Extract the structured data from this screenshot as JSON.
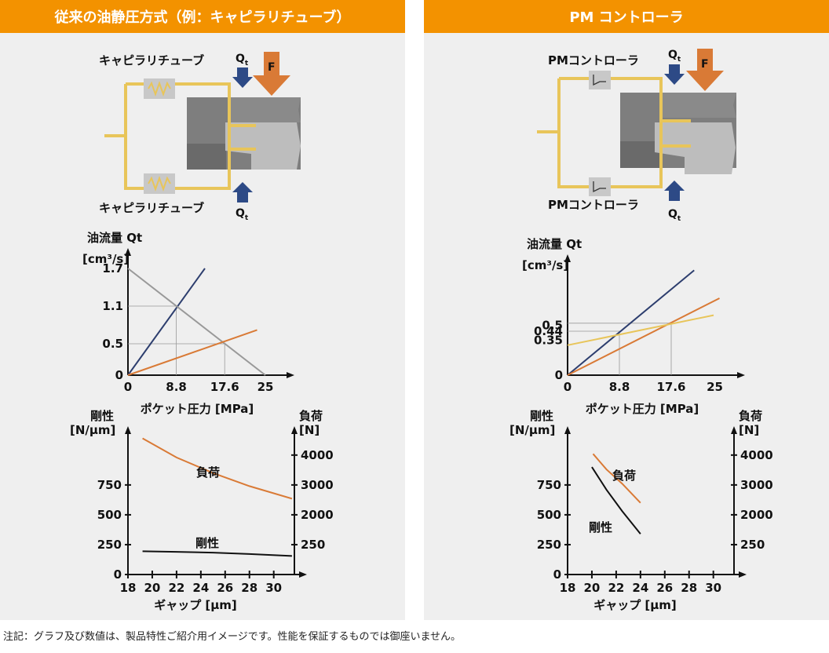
{
  "left_panel": {
    "header": "従来の油静圧方式（例：キャピラリチューブ）",
    "diagram": {
      "restrictor_top_label": "キャピラリチューブ",
      "restrictor_bottom_label": "キャピラリチューブ",
      "flow_symbol": "Q",
      "flow_subscript": "t",
      "force_label": "F"
    }
  },
  "right_panel": {
    "header": "PM コントローラ",
    "diagram": {
      "restrictor_top_label": "PMコントローラ",
      "restrictor_bottom_label": "PMコントローラ",
      "flow_symbol": "Q",
      "flow_subscript": "t",
      "force_label": "F"
    }
  },
  "chart_data": [
    {
      "id": "flow-capillary",
      "type": "line",
      "ylabel_line1": "油流量 Qt",
      "ylabel_line2": "[cm³/s]",
      "xlabel": "ポケット圧力 [MPa]",
      "x_ticks": [
        "0",
        "8.8",
        "17.6",
        "25"
      ],
      "x_tick_values": [
        0,
        8.8,
        17.6,
        25
      ],
      "y_ticks": [
        "0",
        "0.5",
        "1.1",
        "1.7"
      ],
      "y_tick_values": [
        0,
        0.5,
        1.1,
        1.7
      ],
      "xlim": [
        0,
        28
      ],
      "ylim": [
        0,
        1.85
      ],
      "series": [
        {
          "color": "#2d3e6e",
          "points": [
            [
              0,
              0
            ],
            [
              14,
              1.7
            ]
          ]
        },
        {
          "color": "#999999",
          "points": [
            [
              0,
              1.7
            ],
            [
              25,
              0
            ]
          ]
        },
        {
          "color": "#d97a36",
          "points": [
            [
              0,
              0
            ],
            [
              23.5,
              0.72
            ]
          ]
        }
      ],
      "guides": [
        [
          8.8,
          1.1
        ],
        [
          17.6,
          0.5
        ]
      ]
    },
    {
      "id": "flow-pm",
      "type": "line",
      "ylabel_line1": "油流量 Qt",
      "ylabel_line2": "[cm³/s]",
      "xlabel": "ポケット圧力 [MPa]",
      "x_ticks": [
        "0",
        "8.8",
        "17.6",
        "25"
      ],
      "x_tick_values": [
        0,
        8.8,
        17.6,
        25
      ],
      "y_ticks": [
        "0",
        "0.35",
        "0.44",
        "0.5"
      ],
      "y_tick_values": [
        0,
        0.35,
        0.44,
        0.5
      ],
      "xlim": [
        0,
        28
      ],
      "ylim": [
        0,
        1.1
      ],
      "series": [
        {
          "color": "#2d3e6e",
          "points": [
            [
              0,
              0
            ],
            [
              21.5,
              1.05
            ]
          ]
        },
        {
          "color": "#d97a36",
          "points": [
            [
              0,
              0
            ],
            [
              25.8,
              0.77
            ]
          ]
        },
        {
          "color": "#e8c55a",
          "points": [
            [
              0,
              0.3
            ],
            [
              24.8,
              0.6
            ]
          ]
        }
      ],
      "guides": [
        [
          8.8,
          0.44
        ],
        [
          17.6,
          0.52
        ]
      ]
    },
    {
      "id": "load-capillary",
      "type": "line",
      "ylabel_left_line1": "剛性",
      "ylabel_left_line2": "[N/μm]",
      "ylabel_right_line1": "負荷",
      "ylabel_right_line2": "[N]",
      "xlabel": "ギャップ [μm]",
      "x_ticks": [
        "18",
        "20",
        "22",
        "24",
        "26",
        "28",
        "30"
      ],
      "x_tick_values": [
        18,
        20,
        22,
        24,
        26,
        28,
        30
      ],
      "y_left_ticks": [
        "0",
        "250",
        "500",
        "750"
      ],
      "y_left_tick_values": [
        0,
        250,
        500,
        750
      ],
      "y_right_ticks": [
        "250",
        "2000",
        "3000",
        "4000"
      ],
      "y_right_tick_positions": [
        250,
        500,
        750,
        1000
      ],
      "xlim": [
        18,
        31.7
      ],
      "ylim": [
        0,
        1150
      ],
      "series": [
        {
          "name": "負荷",
          "color": "#d97a36",
          "points": [
            [
              19.2,
              1140
            ],
            [
              22,
              980
            ],
            [
              25,
              850
            ],
            [
              28,
              740
            ],
            [
              31.5,
              635
            ]
          ]
        },
        {
          "name": "剛性",
          "color": "#111111",
          "points": [
            [
              19.2,
              195
            ],
            [
              22,
              190
            ],
            [
              25,
              183
            ],
            [
              28,
              172
            ],
            [
              31.5,
              155
            ]
          ]
        }
      ]
    },
    {
      "id": "load-pm",
      "type": "line",
      "ylabel_left_line1": "剛性",
      "ylabel_left_line2": "[N/μm]",
      "ylabel_right_line1": "負荷",
      "ylabel_right_line2": "[N]",
      "xlabel": "ギャップ [μm]",
      "x_ticks": [
        "18",
        "20",
        "22",
        "24",
        "26",
        "28",
        "30"
      ],
      "x_tick_values": [
        18,
        20,
        22,
        24,
        26,
        28,
        30
      ],
      "y_left_ticks": [
        "0",
        "250",
        "500",
        "750"
      ],
      "y_left_tick_values": [
        0,
        250,
        500,
        750
      ],
      "y_right_ticks": [
        "250",
        "2000",
        "3000",
        "4000"
      ],
      "y_right_tick_positions": [
        250,
        500,
        750,
        1000
      ],
      "xlim": [
        18,
        31.7
      ],
      "ylim": [
        0,
        1150
      ],
      "series": [
        {
          "name": "負荷",
          "color": "#d97a36",
          "points": [
            [
              20.1,
              1010
            ],
            [
              21.2,
              880
            ],
            [
              22.5,
              760
            ],
            [
              24,
              600
            ]
          ]
        },
        {
          "name": "剛性",
          "color": "#111111",
          "points": [
            [
              20,
              900
            ],
            [
              21.2,
              710
            ],
            [
              22.5,
              530
            ],
            [
              24,
              340
            ]
          ]
        }
      ]
    }
  ],
  "footnote": "注記：グラフ及び数値は、製品特性ご紹介用イメージです。性能を保証するものでは御座いません。"
}
